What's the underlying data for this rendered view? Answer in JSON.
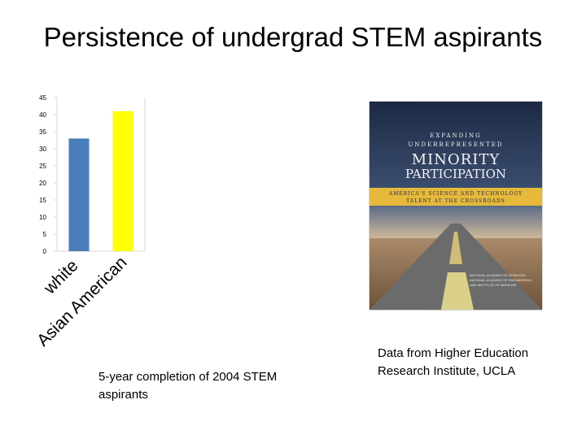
{
  "slide": {
    "title": "Persistence of undergrad STEM aspirants",
    "caption": "5-year completion of 2004 STEM aspirants",
    "source": "Data from Higher Education Research Institute, UCLA"
  },
  "book_cover": {
    "line1": "EXPANDING",
    "line2": "UNDERREPRESENTED",
    "line3": "MINORITY",
    "line4": "PARTICIPATION",
    "band1": "AMERICA'S SCIENCE AND TECHNOLOGY",
    "band2": "TALENT AT THE CROSSROADS",
    "publisher": "NATIONAL ACADEMY OF SCIENCES, NATIONAL ACADEMY OF ENGINEERING, AND INSTITUTE OF MEDICINE",
    "colors": {
      "sky": "#24344f",
      "band": "#e7b93b",
      "road": "#6a6a6a",
      "ground": "#8b6a4a"
    }
  },
  "chart_data": {
    "type": "bar",
    "categories": [
      "white",
      "Asian American"
    ],
    "values": [
      33,
      41
    ],
    "colors": [
      "#4a7ebb",
      "#ffff00"
    ],
    "ylim": [
      0,
      45
    ],
    "yticks": [
      0,
      5,
      10,
      15,
      20,
      25,
      30,
      35,
      40,
      45
    ],
    "grid": false,
    "xlabel": "",
    "ylabel": ""
  }
}
